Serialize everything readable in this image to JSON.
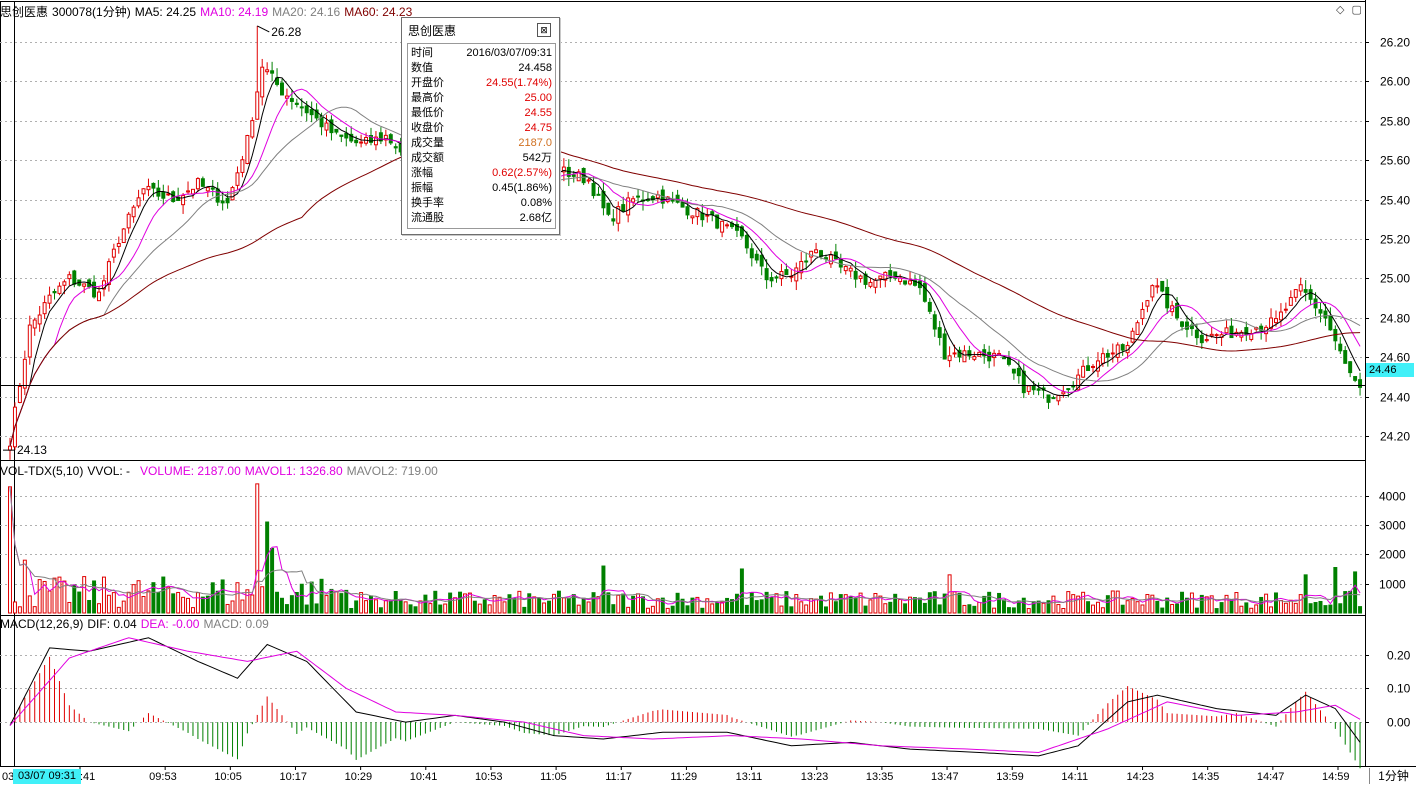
{
  "price_header": {
    "name": "思创医惠",
    "code": "300078(1分钟)",
    "ma5": "MA5: 24.25",
    "ma10": "MA10: 24.19",
    "ma20": "MA20: 24.16",
    "ma60": "MA60: 24.23"
  },
  "volume_header": {
    "indicator": "VOL-TDX(5,10)",
    "vvol": "VVOL: -",
    "volume": "VOLUME: 2187.00",
    "mavol1": "MAVOL1: 1326.80",
    "mavol2": "MAVOL2: 719.00"
  },
  "macd_header": {
    "indicator": "MACD(12,26,9)",
    "dif": "DIF: 0.04",
    "dea": "DEA: -0.00",
    "macd": "MACD: 0.09"
  },
  "tooltip": {
    "title": "思创医惠",
    "close_glyph": "⊠",
    "rows": [
      {
        "k": "时间",
        "v": "2016/03/07/09:31",
        "color": "dark"
      },
      {
        "k": "数值",
        "v": "24.458",
        "color": "dark"
      },
      {
        "k": "开盘价",
        "v": "24.55(1.74%)",
        "color": "red"
      },
      {
        "k": "最高价",
        "v": "25.00",
        "color": "red"
      },
      {
        "k": "最低价",
        "v": "24.55",
        "color": "red"
      },
      {
        "k": "收盘价",
        "v": "24.75",
        "color": "red"
      },
      {
        "k": "成交量",
        "v": "2187.0",
        "color": "orange"
      },
      {
        "k": "成交额",
        "v": "542万",
        "color": "dark"
      },
      {
        "k": "涨幅",
        "v": "0.62(2.57%)",
        "color": "red"
      },
      {
        "k": "振幅",
        "v": "0.45(1.86%)",
        "color": "dark"
      },
      {
        "k": "换手率",
        "v": "0.08%",
        "color": "dark"
      },
      {
        "k": "流通股",
        "v": "2.68亿",
        "color": "dark"
      }
    ]
  },
  "current_price_tag": "24.46",
  "cursor_time_tag": "03/07 09:31",
  "period_label": "1分钟",
  "corner_icons": "◇ ▢",
  "colors": {
    "up": "#e00000",
    "down": "#008000",
    "ma5": "#000000",
    "ma10": "#e000e0",
    "ma20": "#808080",
    "ma60": "#800000",
    "cursor_tag": "#41f0f8"
  },
  "chart_data": [
    {
      "type": "candlestick",
      "title": "思创医惠 300078(1分钟)",
      "ylim": [
        24.08,
        26.32
      ],
      "y_ticks": [
        24.2,
        24.4,
        24.6,
        24.8,
        25.0,
        25.2,
        25.4,
        25.6,
        25.8,
        26.0,
        26.2
      ],
      "y_tick_labels": [
        "24.20",
        "24.40",
        "24.60",
        "24.80",
        "25.00",
        "25.20",
        "25.40",
        "25.60",
        "25.80",
        "26.00",
        "26.20"
      ],
      "x_tick_labels": [
        "09:41",
        "09:53",
        "10:05",
        "10:17",
        "10:29",
        "10:41",
        "10:53",
        "11:05",
        "11:17",
        "11:29",
        "13:11",
        "13:23",
        "13:35",
        "13:47",
        "13:59",
        "14:11",
        "14:23",
        "14:35",
        "14:47",
        "14:59"
      ],
      "x_label_cut_prefix": "03",
      "high_annotation": "26.28",
      "low_annotation": "24.13",
      "high_value": 26.28,
      "low_value": 24.13,
      "current_price": 24.46,
      "close_waypoints": [
        [
          0,
          24.18
        ],
        [
          4,
          24.75
        ],
        [
          8,
          24.9
        ],
        [
          12,
          25.0
        ],
        [
          18,
          24.92
        ],
        [
          22,
          25.2
        ],
        [
          27,
          25.45
        ],
        [
          33,
          25.4
        ],
        [
          38,
          25.48
        ],
        [
          44,
          25.38
        ],
        [
          48,
          25.7
        ],
        [
          51,
          26.08
        ],
        [
          55,
          25.95
        ],
        [
          60,
          25.85
        ],
        [
          66,
          25.72
        ],
        [
          71,
          25.68
        ],
        [
          76,
          25.72
        ],
        [
          81,
          25.6
        ],
        [
          86,
          25.55
        ],
        [
          91,
          25.48
        ],
        [
          96,
          25.45
        ],
        [
          101,
          25.5
        ],
        [
          106,
          25.52
        ],
        [
          111,
          25.55
        ],
        [
          117,
          25.5
        ],
        [
          121,
          25.3
        ],
        [
          126,
          25.4
        ],
        [
          131,
          25.42
        ],
        [
          137,
          25.35
        ],
        [
          142,
          25.3
        ],
        [
          148,
          25.2
        ],
        [
          153,
          25.0
        ],
        [
          158,
          25.02
        ],
        [
          163,
          25.15
        ],
        [
          168,
          25.05
        ],
        [
          174,
          24.98
        ],
        [
          179,
          25.02
        ],
        [
          184,
          24.95
        ],
        [
          189,
          24.62
        ],
        [
          195,
          24.62
        ],
        [
          200,
          24.6
        ],
        [
          205,
          24.45
        ],
        [
          210,
          24.4
        ],
        [
          215,
          24.48
        ],
        [
          220,
          24.6
        ],
        [
          226,
          24.65
        ],
        [
          231,
          24.98
        ],
        [
          236,
          24.8
        ],
        [
          241,
          24.7
        ],
        [
          246,
          24.72
        ],
        [
          251,
          24.75
        ],
        [
          256,
          24.78
        ],
        [
          261,
          24.95
        ],
        [
          266,
          24.8
        ],
        [
          270,
          24.56
        ],
        [
          274,
          24.38
        ]
      ],
      "bars_total": 274,
      "series_names": [
        "MA5",
        "MA10",
        "MA20",
        "MA60"
      ]
    },
    {
      "type": "bar",
      "title": "VOL-TDX(5,10)",
      "ylim": [
        0,
        4600
      ],
      "y_ticks": [
        1000,
        2000,
        3000,
        4000
      ],
      "y_tick_labels": [
        "1000",
        "2000",
        "3000",
        "4000"
      ],
      "volume_spikes": [
        [
          0,
          4300
        ],
        [
          3,
          1800
        ],
        [
          50,
          4400
        ],
        [
          52,
          3100
        ],
        [
          53,
          2200
        ],
        [
          120,
          1600
        ],
        [
          148,
          1500
        ],
        [
          190,
          1300
        ],
        [
          262,
          1300
        ],
        [
          268,
          1550
        ],
        [
          272,
          1400
        ]
      ],
      "series_names": [
        "VOLUME",
        "MAVOL1",
        "MAVOL2"
      ]
    },
    {
      "type": "bar",
      "title": "MACD(12,26,9)",
      "ylim": [
        -0.13,
        0.27
      ],
      "y_ticks": [
        0.0,
        0.1,
        0.2
      ],
      "y_tick_labels": [
        "0.00",
        "0.10",
        "0.20"
      ],
      "dif_waypoints": [
        [
          0,
          -0.01
        ],
        [
          8,
          0.22
        ],
        [
          16,
          0.21
        ],
        [
          28,
          0.25
        ],
        [
          38,
          0.18
        ],
        [
          46,
          0.13
        ],
        [
          52,
          0.23
        ],
        [
          60,
          0.18
        ],
        [
          70,
          0.03
        ],
        [
          80,
          0.0
        ],
        [
          90,
          0.02
        ],
        [
          100,
          0.0
        ],
        [
          110,
          -0.04
        ],
        [
          120,
          -0.05
        ],
        [
          132,
          -0.03
        ],
        [
          145,
          -0.03
        ],
        [
          158,
          -0.07
        ],
        [
          170,
          -0.06
        ],
        [
          182,
          -0.08
        ],
        [
          196,
          -0.09
        ],
        [
          208,
          -0.1
        ],
        [
          216,
          -0.07
        ],
        [
          226,
          0.06
        ],
        [
          232,
          0.08
        ],
        [
          244,
          0.04
        ],
        [
          256,
          0.02
        ],
        [
          262,
          0.08
        ],
        [
          268,
          0.04
        ],
        [
          274,
          -0.08
        ]
      ],
      "dea_waypoints": [
        [
          0,
          -0.01
        ],
        [
          12,
          0.19
        ],
        [
          24,
          0.25
        ],
        [
          36,
          0.21
        ],
        [
          48,
          0.18
        ],
        [
          58,
          0.21
        ],
        [
          68,
          0.1
        ],
        [
          78,
          0.03
        ],
        [
          90,
          0.02
        ],
        [
          104,
          0.0
        ],
        [
          116,
          -0.04
        ],
        [
          130,
          -0.05
        ],
        [
          146,
          -0.04
        ],
        [
          160,
          -0.05
        ],
        [
          176,
          -0.07
        ],
        [
          194,
          -0.08
        ],
        [
          208,
          -0.09
        ],
        [
          222,
          -0.02
        ],
        [
          234,
          0.06
        ],
        [
          248,
          0.02
        ],
        [
          260,
          0.03
        ],
        [
          268,
          0.05
        ],
        [
          274,
          0.0
        ]
      ],
      "series_names": [
        "DIF",
        "DEA",
        "MACD"
      ]
    }
  ]
}
